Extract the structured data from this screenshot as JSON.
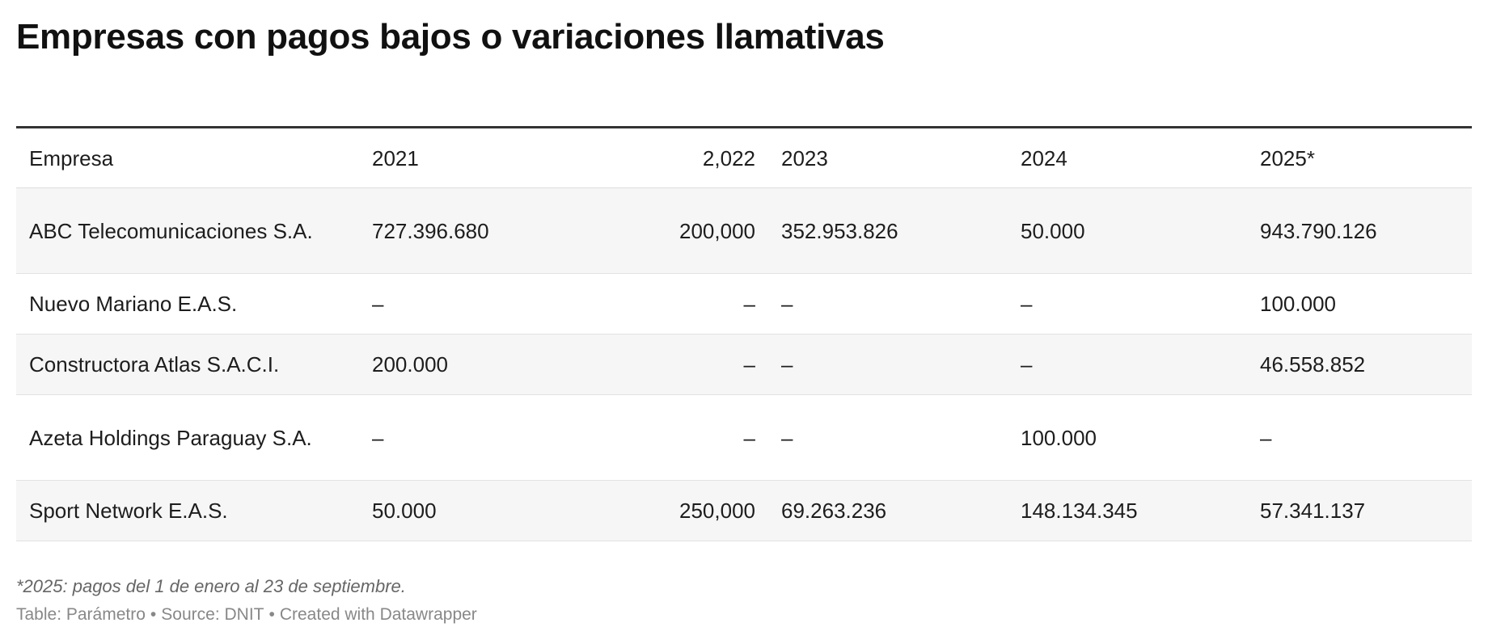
{
  "chart_data": {
    "type": "table",
    "title": "Empresas con pagos bajos o variaciones llamativas",
    "columns": [
      "Empresa",
      "2021",
      "2,022",
      "2023",
      "2024",
      "2025*"
    ],
    "rows": [
      [
        "ABC Telecomunicaciones S.A.",
        "727.396.680",
        "200,000",
        "352.953.826",
        "50.000",
        "943.790.126"
      ],
      [
        "Nuevo Mariano E.A.S.",
        "–",
        "–",
        "–",
        "–",
        "100.000"
      ],
      [
        "Constructora Atlas S.A.C.I.",
        "200.000",
        "–",
        "–",
        "–",
        "46.558.852"
      ],
      [
        "Azeta Holdings Paraguay S.A.",
        "–",
        "–",
        "–",
        "100.000",
        "–"
      ],
      [
        "Sport Network E.A.S.",
        "50.000",
        "250,000",
        "69.263.236",
        "148.134.345",
        "57.341.137"
      ]
    ],
    "notes": "*2025: pagos del 1 de enero al 23 de septiembre.",
    "credits": {
      "table": "Table: Parámetro",
      "source": "Source: DNIT",
      "created": "Created with Datawrapper",
      "separator": "•"
    }
  }
}
